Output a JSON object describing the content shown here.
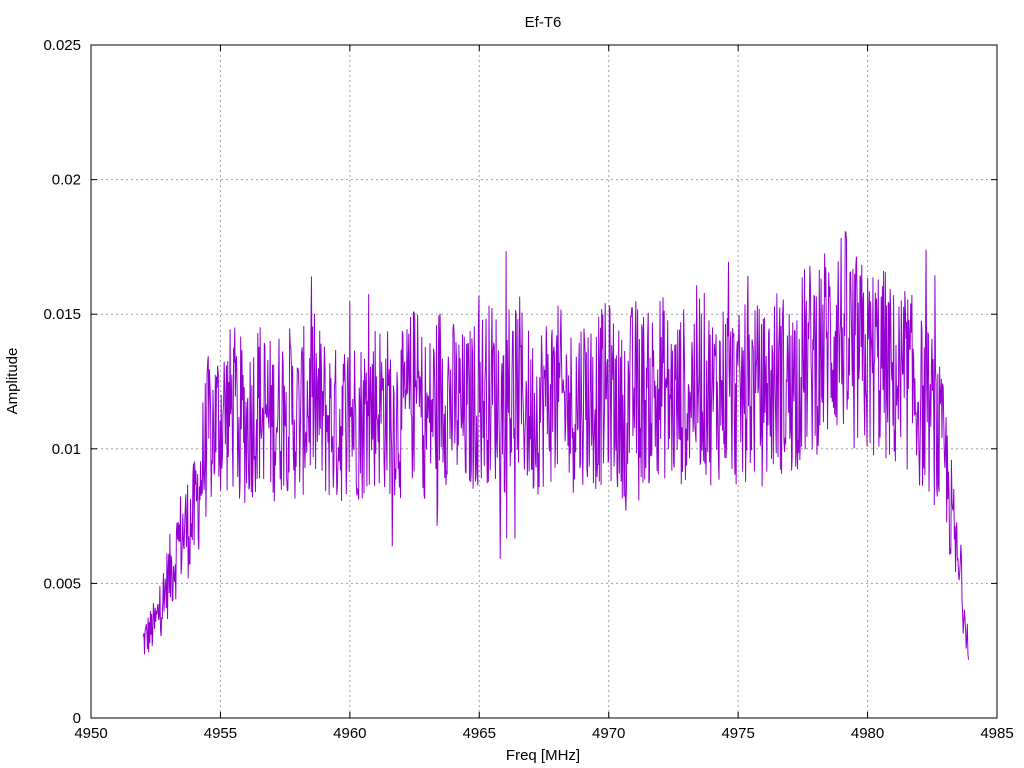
{
  "chart_data": {
    "type": "line",
    "title": "Ef-T6",
    "xlabel": "Freq [MHz]",
    "ylabel": "Amplitude",
    "xlim": [
      4950,
      4985
    ],
    "ylim": [
      0,
      0.025
    ],
    "xticks": [
      4950,
      4955,
      4960,
      4965,
      4970,
      4975,
      4980,
      4985
    ],
    "xtick_labels": [
      "4950",
      "4955",
      "4960",
      "4965",
      "4970",
      "4975",
      "4980",
      "4985"
    ],
    "yticks": [
      0,
      0.005,
      0.01,
      0.015,
      0.02,
      0.025
    ],
    "ytick_labels": [
      "0",
      "0.005",
      "0.01",
      "0.015",
      "0.02",
      "0.025"
    ],
    "grid": true,
    "legend": "none",
    "series": [
      {
        "color": "#9400d3",
        "x": [
          4952.0,
          4952.5,
          4953.0,
          4953.5,
          4954.0,
          4954.5,
          4955.0,
          4955.5,
          4956.0,
          4956.5,
          4957.0,
          4957.5,
          4958.0,
          4958.5,
          4959.0,
          4959.5,
          4960.0,
          4960.5,
          4961.0,
          4961.5,
          4962.0,
          4962.5,
          4963.0,
          4963.5,
          4964.0,
          4964.5,
          4965.0,
          4965.5,
          4966.0,
          4966.5,
          4967.0,
          4967.5,
          4968.0,
          4968.5,
          4969.0,
          4969.5,
          4970.0,
          4970.5,
          4971.0,
          4971.5,
          4972.0,
          4972.5,
          4973.0,
          4973.5,
          4974.0,
          4974.5,
          4975.0,
          4975.5,
          4976.0,
          4976.5,
          4977.0,
          4977.5,
          4978.0,
          4978.5,
          4979.0,
          4979.5,
          4980.0,
          4980.5,
          4981.0,
          4981.5,
          4982.0,
          4982.5,
          4983.0,
          4983.5,
          4983.9
        ],
        "y": [
          0.0028,
          0.0035,
          0.0052,
          0.0068,
          0.0075,
          0.0105,
          0.0112,
          0.0115,
          0.0108,
          0.0118,
          0.011,
          0.0117,
          0.0109,
          0.012,
          0.0112,
          0.0108,
          0.0113,
          0.0111,
          0.0118,
          0.0114,
          0.0112,
          0.0121,
          0.011,
          0.0123,
          0.0116,
          0.0112,
          0.0119,
          0.0122,
          0.0115,
          0.0124,
          0.0112,
          0.0118,
          0.0121,
          0.0114,
          0.012,
          0.0117,
          0.0122,
          0.0112,
          0.0123,
          0.0118,
          0.0125,
          0.0116,
          0.0121,
          0.0127,
          0.0119,
          0.0124,
          0.0117,
          0.0123,
          0.0118,
          0.0126,
          0.0122,
          0.0131,
          0.0135,
          0.014,
          0.0145,
          0.0136,
          0.0131,
          0.0134,
          0.0125,
          0.0127,
          0.0118,
          0.0112,
          0.0095,
          0.0055,
          0.003
        ]
      }
    ]
  }
}
